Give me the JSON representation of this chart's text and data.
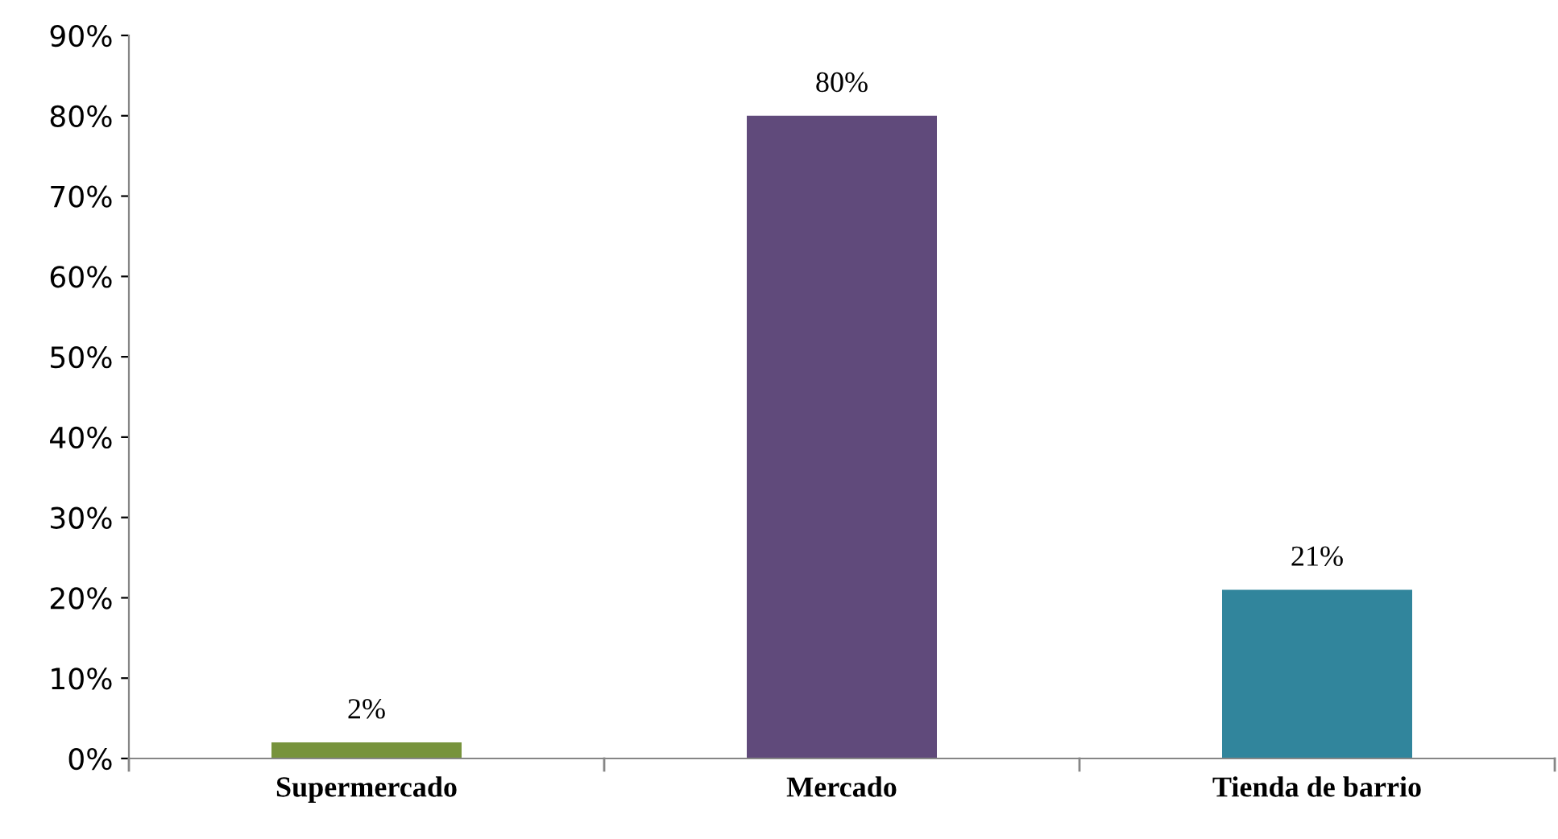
{
  "chart_data": {
    "type": "bar",
    "categories": [
      "Supermercado",
      "Mercado",
      "Tienda de barrio"
    ],
    "values": [
      2,
      80,
      21
    ],
    "colors": [
      "#77933c",
      "#604a7b",
      "#31859c"
    ],
    "value_labels": [
      "2%",
      "80%",
      "21%"
    ],
    "ylim": [
      0,
      90
    ],
    "yticks": [
      {
        "value": 0,
        "label": "0%"
      },
      {
        "value": 10,
        "label": "10%"
      },
      {
        "value": 20,
        "label": "20%"
      },
      {
        "value": 30,
        "label": "30%"
      },
      {
        "value": 40,
        "label": "40%"
      },
      {
        "value": 50,
        "label": "50%"
      },
      {
        "value": 60,
        "label": "60%"
      },
      {
        "value": 70,
        "label": "70%"
      },
      {
        "value": 80,
        "label": "80%"
      },
      {
        "value": 90,
        "label": "90%"
      }
    ],
    "grid": false,
    "legend": false
  }
}
